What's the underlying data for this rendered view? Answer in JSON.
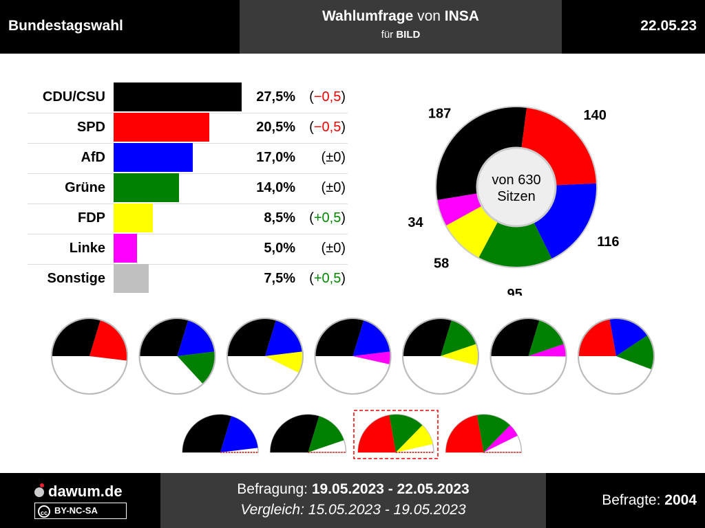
{
  "header": {
    "left": "Bundestagswahl",
    "title_bold": "Wahlumfrage",
    "title_mid": " von ",
    "title_bold2": "INSA",
    "sub_prefix": "für ",
    "sub_bold": "BILD",
    "date": "22.05.23"
  },
  "footer": {
    "brand": "dawum.de",
    "license": "BY-NC-SA",
    "line1_prefix": "Befragung: ",
    "line1_value": "19.05.2023 - 22.05.2023",
    "line2": "Vergleich: 15.05.2023 - 19.05.2023",
    "respondents_label": "Befragte: ",
    "respondents_value": "2004"
  },
  "colors": {
    "CDU/CSU": "#000000",
    "SPD": "#ff0000",
    "AfD": "#0000ff",
    "Grüne": "#008000",
    "FDP": "#ffff00",
    "Linke": "#ff00ff",
    "Sonstige": "#c0c0c0"
  },
  "chart_data": [
    {
      "type": "bar",
      "categories": [
        "CDU/CSU",
        "SPD",
        "AfD",
        "Grüne",
        "FDP",
        "Linke",
        "Sonstige"
      ],
      "values": [
        27.5,
        20.5,
        17.0,
        14.0,
        8.5,
        5.0,
        7.5
      ],
      "value_labels": [
        "27,5%",
        "20,5%",
        "17,0%",
        "14,0%",
        "8,5%",
        "5,0%",
        "7,5%"
      ],
      "change_labels": [
        "(−0,5)",
        "(−0,5)",
        "(±0)",
        "(±0)",
        "(+0,5)",
        "(±0)",
        "(+0,5)"
      ],
      "change_sign": [
        "neg",
        "neg",
        "zero",
        "zero",
        "pos",
        "zero",
        "pos"
      ]
    },
    {
      "type": "pie",
      "center_line1": "von 630",
      "center_line2": "Sitzen",
      "slices": [
        {
          "party": "CDU/CSU",
          "seats": 187,
          "label": "187"
        },
        {
          "party": "SPD",
          "seats": 140,
          "label": "140"
        },
        {
          "party": "AfD",
          "seats": 116,
          "label": "116"
        },
        {
          "party": "Grüne",
          "seats": 95,
          "label": "95"
        },
        {
          "party": "FDP",
          "seats": 58,
          "label": "58"
        },
        {
          "party": "Linke",
          "seats": 34,
          "label": "34"
        }
      ]
    },
    {
      "type": "pie",
      "description_kind": "coalition half-pies",
      "coalitions": [
        {
          "parties": [
            "CDU/CSU",
            "SPD"
          ],
          "highlighted": false
        },
        {
          "parties": [
            "CDU/CSU",
            "AfD",
            "Grüne"
          ],
          "highlighted": false
        },
        {
          "parties": [
            "CDU/CSU",
            "AfD",
            "FDP"
          ],
          "highlighted": false
        },
        {
          "parties": [
            "CDU/CSU",
            "AfD",
            "Linke"
          ],
          "highlighted": false
        },
        {
          "parties": [
            "CDU/CSU",
            "Grüne",
            "FDP"
          ],
          "highlighted": false
        },
        {
          "parties": [
            "CDU/CSU",
            "Grüne",
            "Linke"
          ],
          "highlighted": false
        },
        {
          "parties": [
            "SPD",
            "AfD",
            "Grüne"
          ],
          "highlighted": false
        },
        {
          "parties": [
            "CDU/CSU",
            "AfD"
          ],
          "highlighted": false
        },
        {
          "parties": [
            "CDU/CSU",
            "Grüne"
          ],
          "highlighted": false
        },
        {
          "parties": [
            "SPD",
            "Grüne",
            "FDP"
          ],
          "highlighted": true
        },
        {
          "parties": [
            "SPD",
            "Grüne",
            "Linke"
          ],
          "highlighted": false
        }
      ]
    }
  ]
}
